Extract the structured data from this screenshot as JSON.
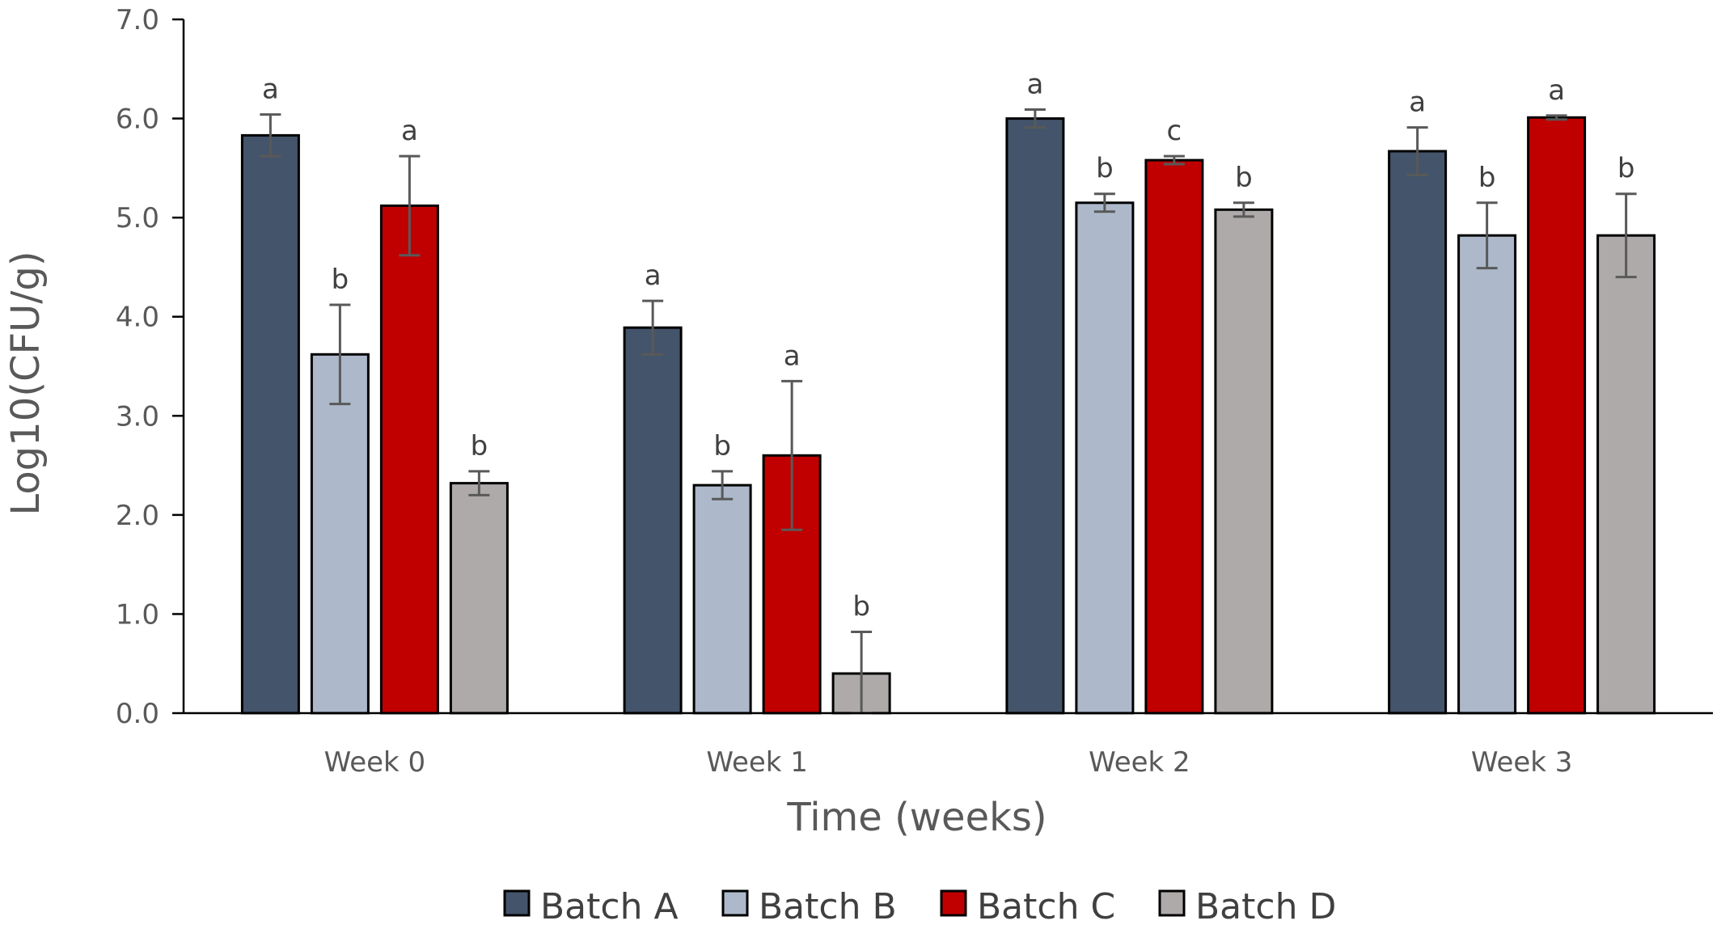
{
  "chart_data": {
    "type": "bar",
    "title": "",
    "xlabel": "Time (weeks)",
    "ylabel": "Log10(CFU/g)",
    "ylim": [
      0,
      7
    ],
    "yticks": [
      "0.0",
      "1.0",
      "2.0",
      "3.0",
      "4.0",
      "5.0",
      "6.0",
      "7.0"
    ],
    "categories": [
      "Week 0",
      "Week 1",
      "Week 2",
      "Week 3"
    ],
    "grid": false,
    "legend_position": "bottom",
    "series": [
      {
        "name": "Batch A",
        "color": "#44546a",
        "values": [
          5.83,
          3.89,
          6.0,
          5.67
        ],
        "errors": [
          0.21,
          0.27,
          0.09,
          0.24
        ],
        "labels": [
          "a",
          "a",
          "a",
          "a"
        ]
      },
      {
        "name": "Batch B",
        "color": "#adb9ca",
        "values": [
          3.62,
          2.3,
          5.15,
          4.82
        ],
        "errors": [
          0.5,
          0.14,
          0.09,
          0.33
        ],
        "labels": [
          "b",
          "b",
          "b",
          "b"
        ]
      },
      {
        "name": "Batch C",
        "color": "#c00000",
        "values": [
          5.12,
          2.6,
          5.58,
          6.01
        ],
        "errors": [
          0.5,
          0.75,
          0.04,
          0.02
        ],
        "labels": [
          "a",
          "a",
          "c",
          "a"
        ]
      },
      {
        "name": "Batch D",
        "color": "#aeaaaa",
        "values": [
          2.32,
          0.4,
          5.08,
          4.82
        ],
        "errors": [
          0.12,
          0.42,
          0.07,
          0.42
        ],
        "labels": [
          "b",
          "b",
          "b",
          "b"
        ]
      }
    ]
  }
}
